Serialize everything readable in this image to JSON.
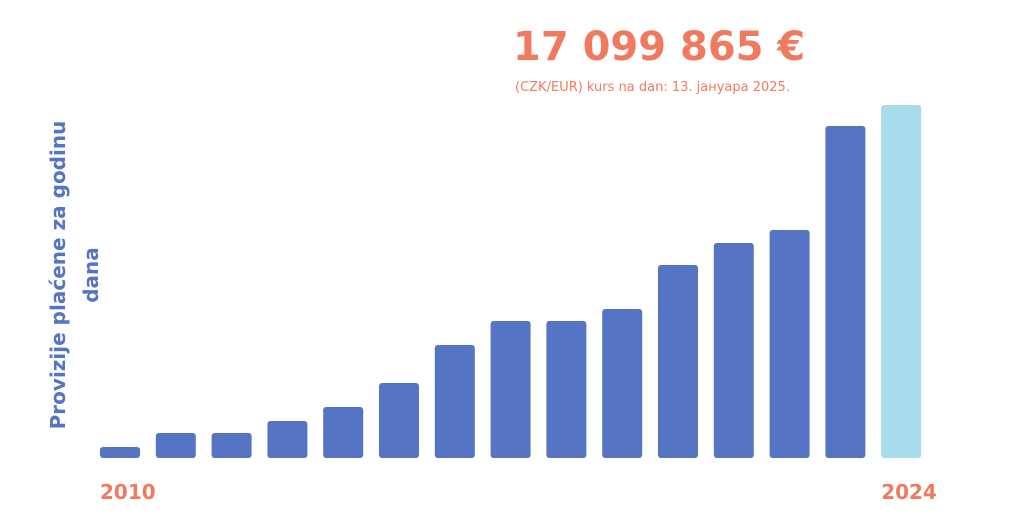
{
  "chart_data": {
    "type": "bar",
    "title": "17 099 865 €",
    "subtitle": "(CZK/EUR) kurs na dan: 13. јануара 2025.",
    "y_label": "Provizije plaćene za godinu dana",
    "categories": [
      "2010",
      null,
      null,
      null,
      null,
      null,
      null,
      null,
      null,
      null,
      null,
      null,
      null,
      null,
      "2024"
    ],
    "values": [
      533000,
      1211000,
      1211000,
      1792000,
      2471000,
      3633000,
      5474000,
      6637000,
      6637000,
      7218000,
      9349000,
      10415000,
      11045000,
      16083000,
      17099865
    ],
    "colors": [
      "#5674c4",
      "#5674c4",
      "#5674c4",
      "#5674c4",
      "#5674c4",
      "#5674c4",
      "#5674c4",
      "#5674c4",
      "#5674c4",
      "#5674c4",
      "#5674c4",
      "#5674c4",
      "#5674c4",
      "#5674c4",
      "#a6dcec"
    ]
  }
}
